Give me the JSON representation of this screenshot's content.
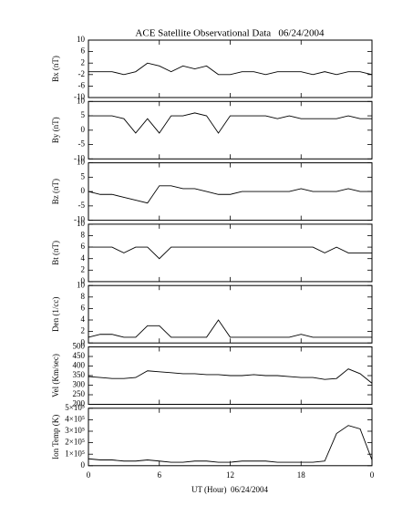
{
  "chart_data": [
    {
      "type": "line",
      "title": "ACE Satellite Observational Data   06/24/2004",
      "y_label": "Bx (nT)",
      "color": "#000000",
      "x": [
        0,
        1,
        2,
        3,
        4,
        5,
        6,
        7,
        8,
        9,
        10,
        11,
        12,
        13,
        14,
        15,
        16,
        17,
        18,
        19,
        20,
        21,
        22,
        23,
        24
      ],
      "values": [
        -1,
        -1,
        -1,
        -2,
        -1,
        2,
        1,
        -1,
        1,
        0,
        1,
        -2,
        -2,
        -1,
        -1,
        -2,
        -1,
        -1,
        -1,
        -2,
        -1,
        -2,
        -1,
        -1,
        -2
      ],
      "xlim": [
        0,
        24
      ],
      "ylim": [
        -10,
        10
      ],
      "yticks": [
        10,
        6,
        2,
        -2,
        -6,
        -10
      ]
    },
    {
      "type": "line",
      "y_label": "By (nT)",
      "color": "#000000",
      "x": [
        0,
        1,
        2,
        3,
        4,
        5,
        6,
        7,
        8,
        9,
        10,
        11,
        12,
        13,
        14,
        15,
        16,
        17,
        18,
        19,
        20,
        21,
        22,
        23,
        24
      ],
      "values": [
        5,
        5,
        5,
        4,
        -1,
        4,
        -1,
        5,
        5,
        6,
        5,
        -1,
        5,
        5,
        5,
        5,
        4,
        5,
        4,
        4,
        4,
        4,
        5,
        4,
        4
      ],
      "xlim": [
        0,
        24
      ],
      "ylim": [
        -10,
        10
      ],
      "yticks": [
        10,
        5,
        0,
        -5,
        -10
      ]
    },
    {
      "type": "line",
      "y_label": "Bz (nT)",
      "color": "#000000",
      "x": [
        0,
        1,
        2,
        3,
        4,
        5,
        6,
        7,
        8,
        9,
        10,
        11,
        12,
        13,
        14,
        15,
        16,
        17,
        18,
        19,
        20,
        21,
        22,
        23,
        24
      ],
      "values": [
        0,
        -1,
        -1,
        -2,
        -3,
        -4,
        2,
        2,
        1,
        1,
        0,
        -1,
        -1,
        0,
        0,
        0,
        0,
        0,
        1,
        0,
        0,
        0,
        1,
        0,
        0
      ],
      "xlim": [
        0,
        24
      ],
      "ylim": [
        -10,
        10
      ],
      "yticks": [
        10,
        5,
        0,
        -5,
        -10
      ]
    },
    {
      "type": "line",
      "y_label": "Bt (nT)",
      "color": "#000000",
      "x": [
        0,
        1,
        2,
        3,
        4,
        5,
        6,
        7,
        8,
        9,
        10,
        11,
        12,
        13,
        14,
        15,
        16,
        17,
        18,
        19,
        20,
        21,
        22,
        23,
        24
      ],
      "values": [
        6,
        6,
        6,
        5,
        6,
        6,
        4,
        6,
        6,
        6,
        6,
        6,
        6,
        6,
        6,
        6,
        6,
        6,
        6,
        6,
        5,
        6,
        5,
        5,
        5
      ],
      "xlim": [
        0,
        24
      ],
      "ylim": [
        0,
        10
      ],
      "yticks": [
        10,
        8,
        6,
        4,
        2,
        0
      ]
    },
    {
      "type": "line",
      "y_label": "Den (1/cc)",
      "color": "#000000",
      "x": [
        0,
        1,
        2,
        3,
        4,
        5,
        6,
        7,
        8,
        9,
        10,
        11,
        12,
        13,
        14,
        15,
        16,
        17,
        18,
        19,
        20,
        21,
        22,
        23,
        24
      ],
      "values": [
        1,
        1.5,
        1.5,
        1,
        1,
        3,
        3,
        1,
        1,
        1,
        1,
        4,
        1,
        1,
        1,
        1,
        1,
        1,
        1.5,
        1,
        1,
        1,
        1,
        1,
        1
      ],
      "xlim": [
        0,
        24
      ],
      "ylim": [
        0,
        10
      ],
      "yticks": [
        10,
        8,
        6,
        4,
        2,
        0
      ]
    },
    {
      "type": "line",
      "y_label": "Vel (Km/sec)",
      "color": "#000000",
      "x": [
        0,
        1,
        2,
        3,
        4,
        5,
        6,
        7,
        8,
        9,
        10,
        11,
        12,
        13,
        14,
        15,
        16,
        17,
        18,
        19,
        20,
        21,
        22,
        23,
        24
      ],
      "values": [
        345,
        340,
        335,
        335,
        340,
        375,
        370,
        365,
        360,
        360,
        355,
        355,
        350,
        350,
        355,
        350,
        350,
        345,
        340,
        340,
        330,
        335,
        385,
        360,
        310
      ],
      "xlim": [
        0,
        24
      ],
      "ylim": [
        200,
        500
      ],
      "yticks": [
        500,
        450,
        400,
        350,
        300,
        250,
        200
      ]
    },
    {
      "type": "line",
      "y_label": "Ion Temp (K)",
      "x_label": "UT (Hour)  06/24/2004",
      "color": "#000000",
      "x": [
        0,
        1,
        2,
        3,
        4,
        5,
        6,
        7,
        8,
        9,
        10,
        11,
        12,
        13,
        14,
        15,
        16,
        17,
        18,
        19,
        20,
        21,
        22,
        23,
        24
      ],
      "values": [
        60000,
        50000,
        50000,
        40000,
        40000,
        50000,
        40000,
        30000,
        30000,
        40000,
        40000,
        30000,
        30000,
        40000,
        40000,
        40000,
        30000,
        30000,
        30000,
        30000,
        40000,
        280000,
        350000,
        320000,
        50000
      ],
      "xlim": [
        0,
        24
      ],
      "ylim": [
        0,
        500000
      ],
      "yticks": [
        {
          "value": 500000,
          "label": "5×10⁵"
        },
        {
          "value": 400000,
          "label": "4×10⁵"
        },
        {
          "value": 300000,
          "label": "3×10⁵"
        },
        {
          "value": 200000,
          "label": "2×10⁵"
        },
        {
          "value": 100000,
          "label": "1×10⁵"
        },
        0
      ],
      "xticks": [
        0,
        6,
        12,
        18,
        {
          "value": 24,
          "label": "0"
        }
      ]
    }
  ]
}
